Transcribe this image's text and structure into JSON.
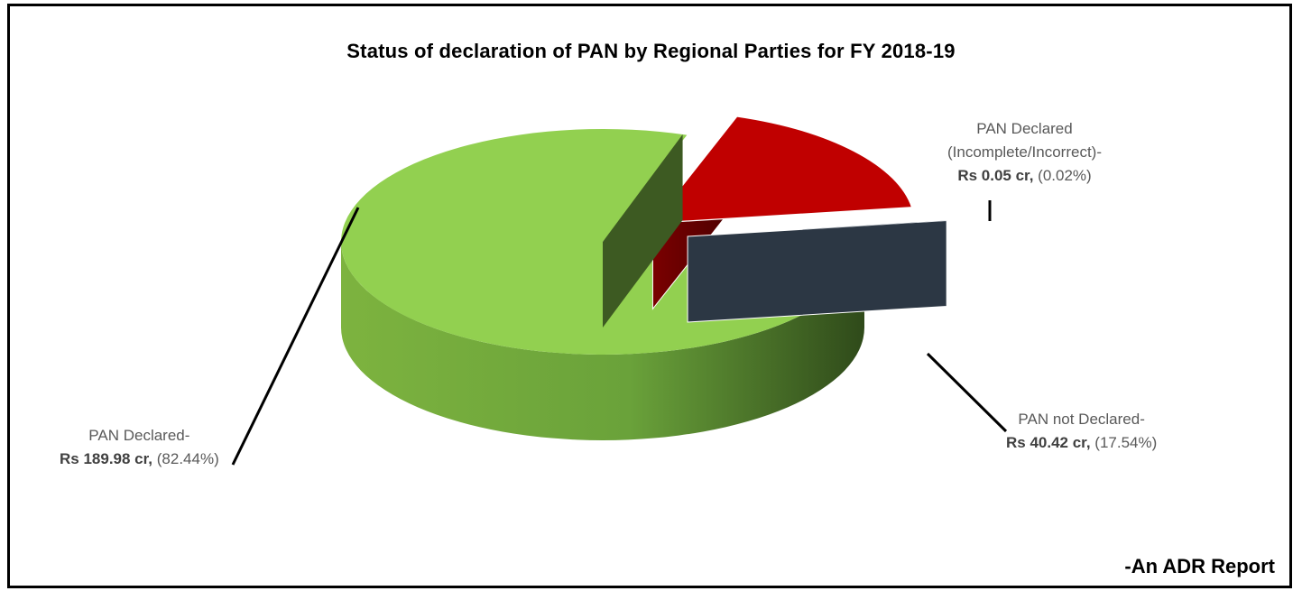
{
  "title": "Status of declaration of PAN by Regional Parties for FY 2018-19",
  "credit": "-An ADR Report",
  "colors": {
    "declared": "#92d050",
    "not_declared": "#c00000",
    "incomplete": "#44546a"
  },
  "labels": {
    "declared": {
      "line1": "PAN Declared-",
      "amount": "Rs 189.98 cr,",
      "pct": " (82.44%)"
    },
    "not_declared": {
      "line1": "PAN not Declared-",
      "amount": "Rs 40.42 cr,",
      "pct": " (17.54%)"
    },
    "incomplete": {
      "line1": "PAN Declared",
      "line2": "(Incomplete/Incorrect)-",
      "amount": "Rs 0.05 cr,",
      "pct": " (0.02%)"
    }
  },
  "chart_data": {
    "type": "pie",
    "style": "3d-exploded",
    "title": "Status of declaration of PAN by Regional Parties for FY 2018-19",
    "categories": [
      "PAN Declared",
      "PAN not Declared",
      "PAN Declared (Incomplete/Incorrect)"
    ],
    "values": [
      189.98,
      40.42,
      0.05
    ],
    "unit": "Rs cr",
    "percentages": [
      82.44,
      17.54,
      0.02
    ],
    "colors": [
      "#92d050",
      "#c00000",
      "#44546a"
    ]
  }
}
